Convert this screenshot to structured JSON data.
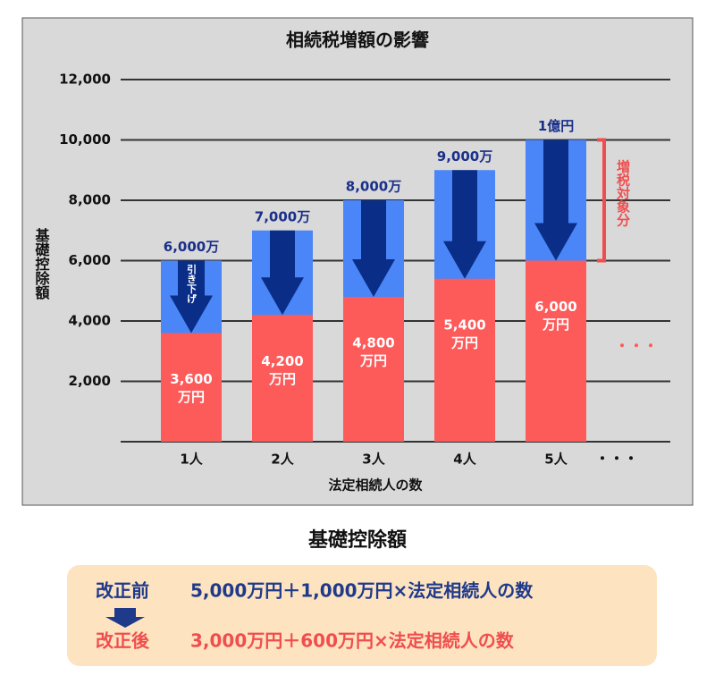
{
  "chart_data": {
    "type": "bar",
    "title": "相続税増額の影響",
    "x_label": "法定相続人の数",
    "y_label": "基礎控除額",
    "categories": [
      "1人",
      "2人",
      "3人",
      "4人",
      "5人"
    ],
    "series": [
      {
        "name": "改正前",
        "color": "#4a86f7",
        "values": [
          6000,
          7000,
          8000,
          9000,
          10000
        ],
        "value_labels": [
          "6,000万",
          "7,000万",
          "8,000万",
          "9,000万",
          "1億円"
        ]
      },
      {
        "name": "改正後",
        "color": "#fd5a5a",
        "values": [
          3600,
          4200,
          4800,
          5400,
          6000
        ],
        "value_labels": [
          [
            "3,600",
            "万円"
          ],
          [
            "4,200",
            "万円"
          ],
          [
            "4,800",
            "万円"
          ],
          [
            "5,400",
            "万円"
          ],
          [
            "6,000",
            "万円"
          ]
        ]
      }
    ],
    "ylim": [
      0,
      12000
    ],
    "yticks": [
      {
        "value": 2000,
        "label": "2,000"
      },
      {
        "value": 4000,
        "label": "4,000"
      },
      {
        "value": 6000,
        "label": "6,000"
      },
      {
        "value": 8000,
        "label": "8,000"
      },
      {
        "value": 10000,
        "label": "10,000"
      },
      {
        "value": 12000,
        "label": "12,000"
      }
    ],
    "grid": true,
    "annotations": {
      "arrow": "引き下げ",
      "bracket": "増税対象分",
      "continuation": "・・・",
      "axis_continuation": "・・・"
    }
  },
  "formula": {
    "title": "基礎控除額",
    "rows": [
      {
        "label": "改正前",
        "text": "5,000万円＋1,000万円×法定相続人の数"
      },
      {
        "label": "改正後",
        "text": "3,000万円＋600万円×法定相続人の数"
      }
    ]
  }
}
